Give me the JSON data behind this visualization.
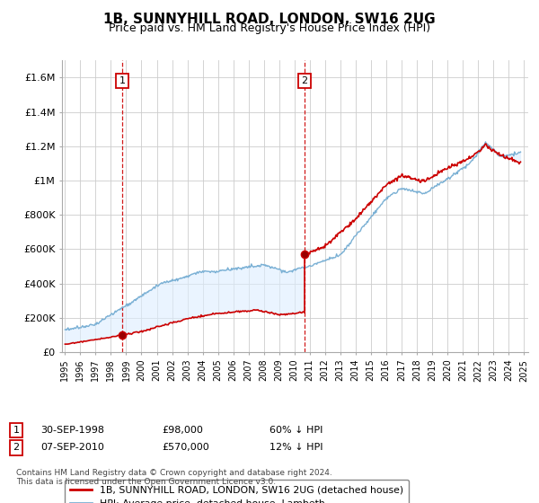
{
  "title": "1B, SUNNYHILL ROAD, LONDON, SW16 2UG",
  "subtitle": "Price paid vs. HM Land Registry's House Price Index (HPI)",
  "ylim": [
    0,
    1700000
  ],
  "yticks": [
    0,
    200000,
    400000,
    600000,
    800000,
    1000000,
    1200000,
    1400000,
    1600000
  ],
  "ytick_labels": [
    "£0",
    "£200K",
    "£400K",
    "£600K",
    "£800K",
    "£1M",
    "£1.2M",
    "£1.4M",
    "£1.6M"
  ],
  "legend_line1": "1B, SUNNYHILL ROAD, LONDON, SW16 2UG (detached house)",
  "legend_line2": "HPI: Average price, detached house, Lambeth",
  "sale1_date": 1998.75,
  "sale1_price": 98000,
  "sale1_label": "1",
  "sale2_date": 2010.67,
  "sale2_price": 570000,
  "sale2_label": "2",
  "footnote3": "Contains HM Land Registry data © Crown copyright and database right 2024.",
  "footnote4": "This data is licensed under the Open Government Licence v3.0.",
  "line_color_red": "#cc0000",
  "line_color_blue": "#7ab0d4",
  "fill_color_blue": "#ddeeff",
  "vline_color": "#cc0000",
  "background_color": "#ffffff",
  "grid_color": "#cccccc",
  "label_box_color": "#cc0000",
  "title_fontsize": 11,
  "subtitle_fontsize": 9,
  "tick_fontsize": 8
}
